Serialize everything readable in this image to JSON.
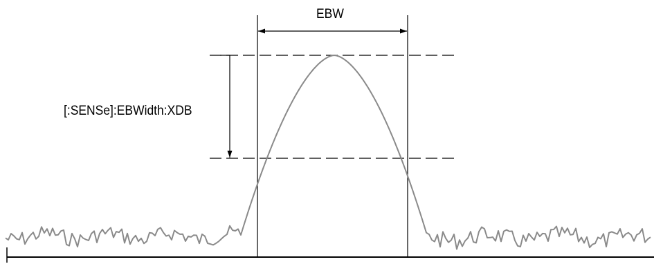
{
  "labels": {
    "ebw": "EBW",
    "xdb": "[:SENSe]:EBWidth:XDB"
  },
  "colors": {
    "line": "#000000",
    "trace": "#8a8a8a",
    "background": "#ffffff"
  }
}
